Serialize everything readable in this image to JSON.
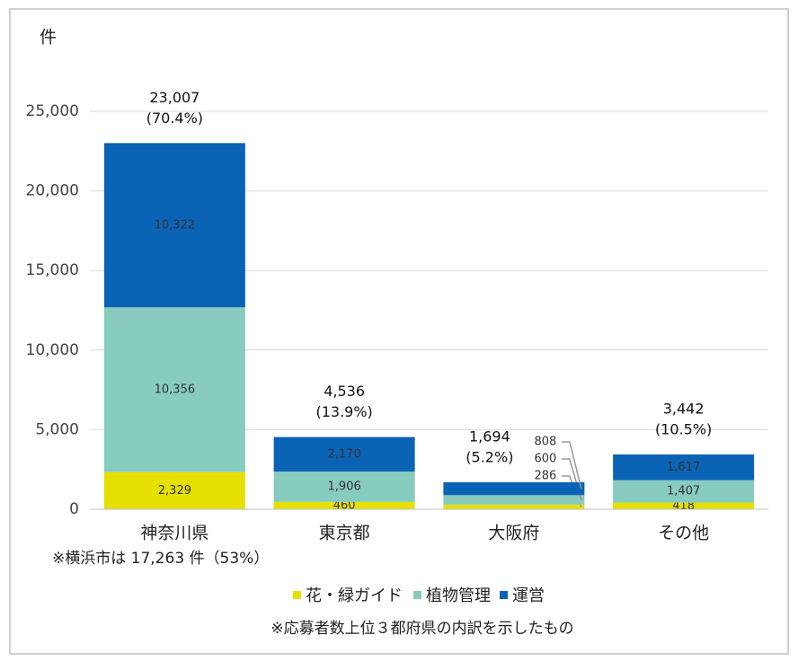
{
  "chart_data": {
    "type": "stacked_bar",
    "y_axis_label": "件",
    "categories": [
      "神奈川県",
      "東京都",
      "大阪府",
      "その他"
    ],
    "series": [
      {
        "name": "花・緑ガイド",
        "color": "#e6e000",
        "values": [
          2329,
          460,
          286,
          418
        ],
        "value_labels": [
          "2,329",
          "460",
          "286",
          "418"
        ]
      },
      {
        "name": "植物管理",
        "color": "#88cbbf",
        "values": [
          10356,
          1906,
          600,
          1407
        ],
        "value_labels": [
          "10,356",
          "1,906",
          "600",
          "1,407"
        ]
      },
      {
        "name": "運営",
        "color": "#0b63b6",
        "values": [
          10322,
          2170,
          808,
          1617
        ],
        "value_labels": [
          "10,322",
          "2,170",
          "808",
          "1,617"
        ]
      }
    ],
    "totals": {
      "values": [
        23007,
        4536,
        1694,
        3442
      ],
      "value_labels": [
        "23,007",
        "4,536",
        "1,694",
        "3,442"
      ],
      "share_labels": [
        "(70.4%)",
        "(13.9%)",
        "(5.2%)",
        "(10.5%)"
      ]
    },
    "ylim": [
      0,
      25000
    ],
    "yticks": [
      0,
      {
        "value": 5000,
        "label": "5,000"
      },
      {
        "value": 10000,
        "label": "10,000"
      },
      {
        "value": 15000,
        "label": "15,000"
      },
      {
        "value": 20000,
        "label": "20,000"
      },
      {
        "value": 25000,
        "label": "25,000"
      }
    ],
    "grid": true,
    "legend": "bottom",
    "annotations": [
      "※横浜市は 17,263 件（53%）",
      "※応募者数上位３都府県の内訳を示したもの"
    ]
  }
}
